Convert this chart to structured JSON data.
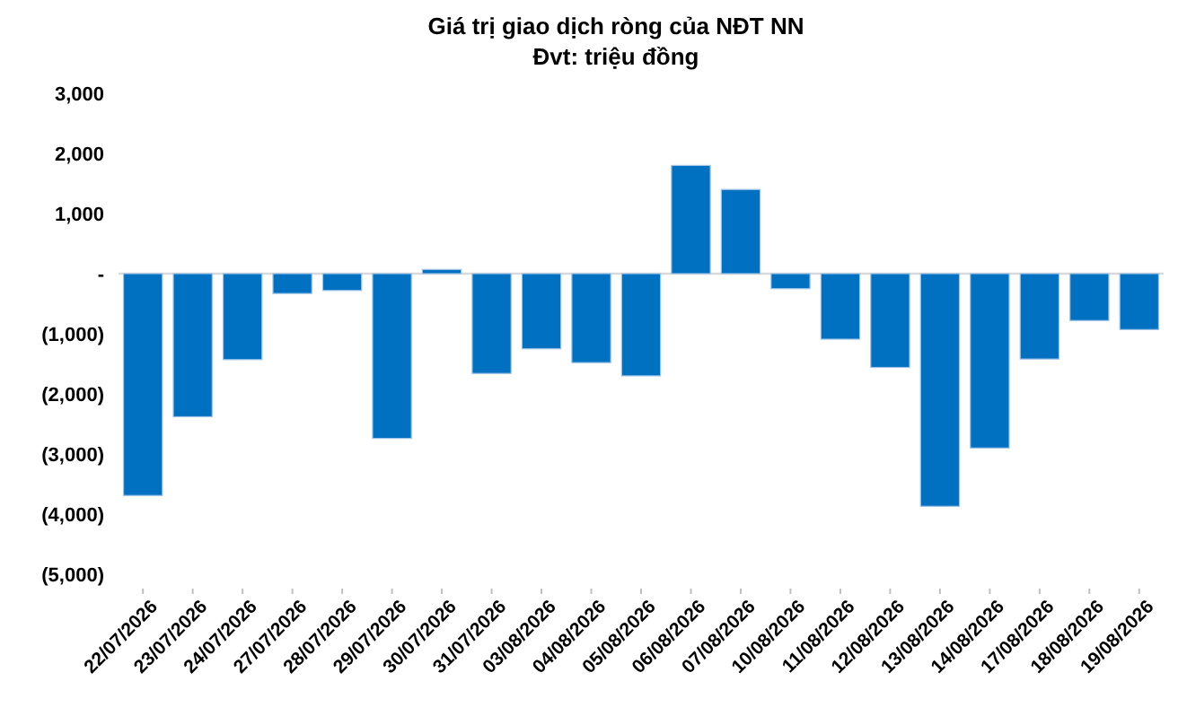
{
  "chart_data": {
    "type": "bar",
    "title": "Giá trị giao dịch ròng của NĐT NN",
    "subtitle": "Đvt: triệu đồng",
    "categories": [
      "22/07/2026",
      "23/07/2026",
      "24/07/2026",
      "27/07/2026",
      "28/07/2026",
      "29/07/2026",
      "30/07/2026",
      "31/07/2026",
      "03/08/2026",
      "04/08/2026",
      "05/08/2026",
      "06/08/2026",
      "07/08/2026",
      "10/08/2026",
      "11/08/2026",
      "12/08/2026",
      "13/08/2026",
      "14/08/2026",
      "17/08/2026",
      "18/08/2026",
      "19/08/2026"
    ],
    "values": [
      -3690,
      -2380,
      -1430,
      -330,
      -280,
      -2740,
      70,
      -1660,
      -1250,
      -1480,
      -1700,
      1800,
      1400,
      -250,
      -1090,
      -1560,
      -3870,
      -2900,
      -1420,
      -780,
      -930
    ],
    "color": "#0070c0",
    "ylim": [
      -5000,
      3000
    ],
    "yticks": [
      {
        "value": -5000,
        "label": "(5,000)"
      },
      {
        "value": -4000,
        "label": "(4,000)"
      },
      {
        "value": -3000,
        "label": "(3,000)"
      },
      {
        "value": -2000,
        "label": "(2,000)"
      },
      {
        "value": -1000,
        "label": "(1,000)"
      },
      {
        "value": 0,
        "label": "-"
      },
      {
        "value": 1000,
        "label": "1,000"
      },
      {
        "value": 2000,
        "label": "2,000"
      },
      {
        "value": 3000,
        "label": "3,000"
      }
    ],
    "ref_lines": [
      {
        "axis": "y",
        "value": 0,
        "color": "#d9d9d9"
      }
    ]
  }
}
